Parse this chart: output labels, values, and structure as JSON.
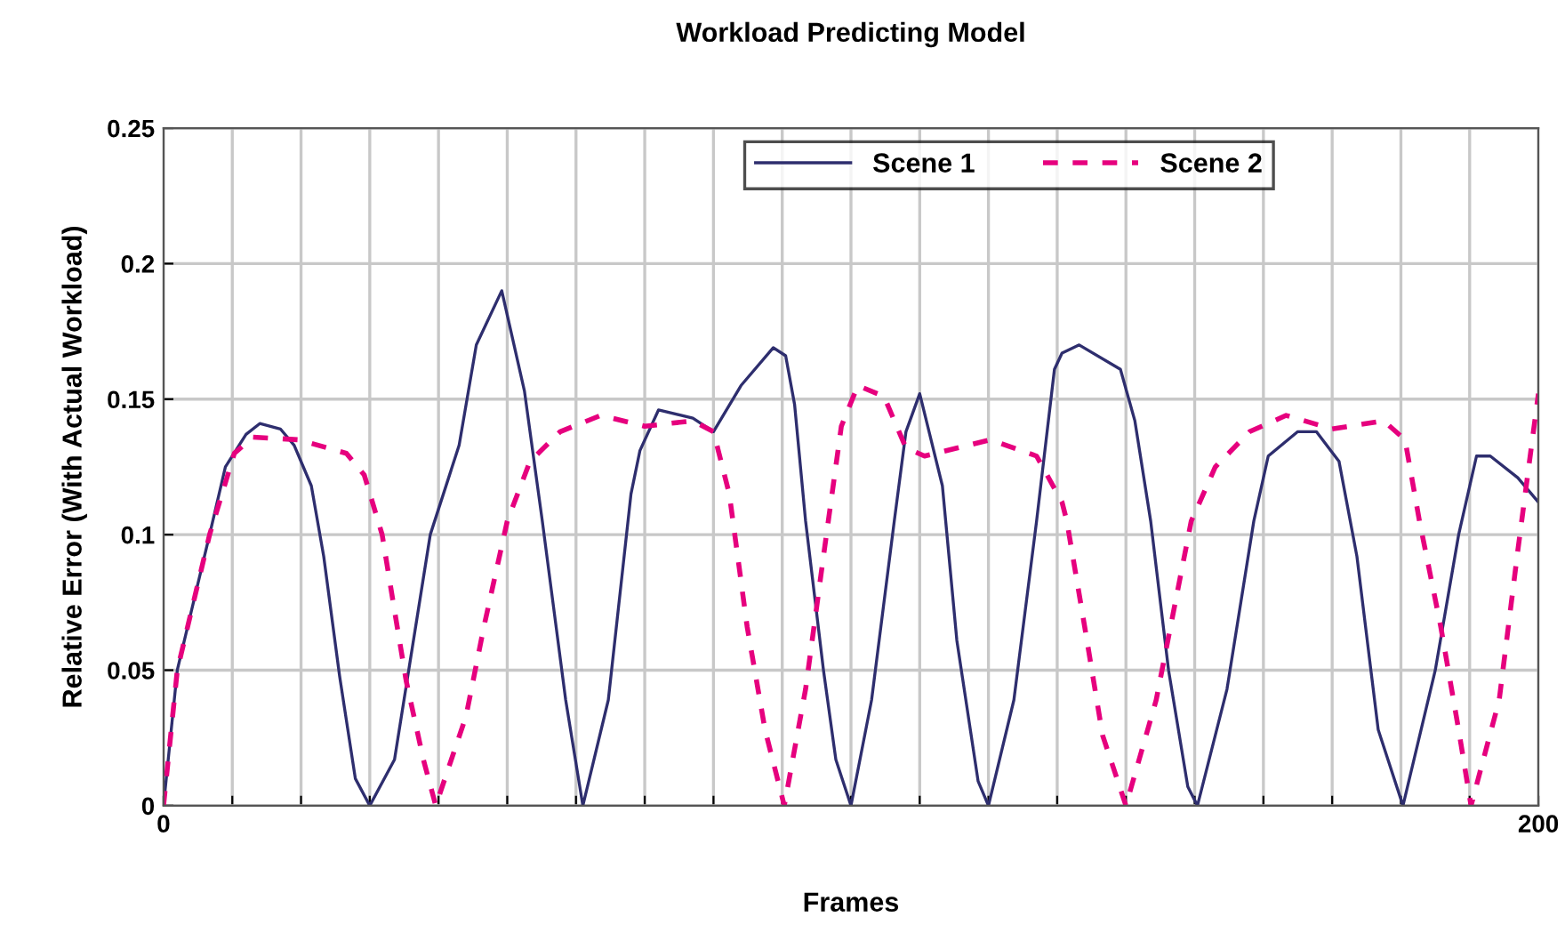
{
  "chart_data": {
    "type": "line",
    "title": "Workload Predicting Model",
    "xlabel": "Frames",
    "ylabel": "Relative Error (With Actual Workload)",
    "xlim": [
      0,
      200
    ],
    "xticks": [
      0,
      {
        "value": 10,
        "label": null
      },
      {
        "value": 20,
        "label": null
      },
      {
        "value": 30,
        "label": null
      },
      {
        "value": 40,
        "label": null
      },
      {
        "value": 50,
        "label": null
      },
      {
        "value": 60,
        "label": null
      },
      {
        "value": 70,
        "label": null
      },
      {
        "value": 80,
        "label": null
      },
      {
        "value": 90,
        "label": null
      },
      {
        "value": 100,
        "label": null
      },
      {
        "value": 110,
        "label": null
      },
      {
        "value": 120,
        "label": null
      },
      {
        "value": 130,
        "label": null
      },
      {
        "value": 140,
        "label": null
      },
      {
        "value": 150,
        "label": null
      },
      {
        "value": 160,
        "label": null
      },
      {
        "value": 170,
        "label": null
      },
      {
        "value": 180,
        "label": null
      },
      {
        "value": 190,
        "label": null
      },
      200
    ],
    "ylim": [
      0,
      0.25
    ],
    "yticks": [
      0,
      0.05,
      0.1,
      0.15,
      0.2,
      0.25
    ],
    "grid": true,
    "legend": "top",
    "marker": "none",
    "series": [
      {
        "name": "Scene 1",
        "color": "#2e2e6e",
        "line_style": "solid",
        "x": [
          0,
          2,
          6.7,
          9,
          12,
          14,
          17,
          19,
          21.5,
          23.3,
          25.6,
          27.9,
          30,
          33.6,
          38.8,
          43,
          45.5,
          49.2,
          52.5,
          55.1,
          58.5,
          61,
          64.7,
          68,
          69.3,
          72,
          77,
          80,
          84,
          88.7,
          90.5,
          91.8,
          93.4,
          96,
          97.8,
          100,
          103,
          106.3,
          108,
          110,
          113.3,
          115.4,
          118.5,
          120,
          123.7,
          127,
          129.6,
          130.7,
          133.2,
          139.2,
          141.3,
          143.6,
          146.2,
          149,
          150.4,
          154.7,
          158.6,
          160.7,
          165,
          167.7,
          171,
          173.6,
          176.7,
          180.3,
          185,
          188.4,
          191,
          193,
          197,
          200
        ],
        "values": [
          0,
          0.05,
          0.1,
          0.125,
          0.137,
          0.141,
          0.139,
          0.133,
          0.118,
          0.092,
          0.048,
          0.01,
          0,
          0.017,
          0.1,
          0.133,
          0.17,
          0.19,
          0.153,
          0.105,
          0.039,
          0,
          0.039,
          0.115,
          0.131,
          0.146,
          0.143,
          0.138,
          0.155,
          0.169,
          0.166,
          0.148,
          0.105,
          0.05,
          0.017,
          0,
          0.039,
          0.105,
          0.138,
          0.152,
          0.118,
          0.061,
          0.009,
          0,
          0.039,
          0.105,
          0.161,
          0.167,
          0.17,
          0.161,
          0.142,
          0.105,
          0.05,
          0.007,
          0,
          0.043,
          0.105,
          0.129,
          0.138,
          0.138,
          0.127,
          0.092,
          0.028,
          0,
          0.05,
          0.1,
          0.129,
          0.129,
          0.121,
          0.112
        ]
      },
      {
        "name": "Scene 2",
        "color": "#e6007e",
        "line_style": "dashed",
        "x": [
          0,
          2,
          6.7,
          10.3,
          13,
          19.7,
          26.6,
          29.2,
          31.8,
          33.6,
          35.3,
          37.8,
          39.6,
          44,
          46.6,
          50,
          53.3,
          57.7,
          63.6,
          70,
          77,
          80,
          82.3,
          84.9,
          87.5,
          90.3,
          93.4,
          96,
          98.6,
          101,
          104.8,
          108,
          110.7,
          120.3,
          127,
          130.7,
          131.4,
          134,
          136.6,
          140,
          144.4,
          149.5,
          153,
          158,
          163.3,
          170,
          177.5,
          180.6,
          182.7,
          185.8,
          188.4,
          190.2,
          194.3,
          197,
          198.7,
          200
        ],
        "values": [
          0,
          0.05,
          0.1,
          0.13,
          0.136,
          0.135,
          0.13,
          0.122,
          0.1,
          0.072,
          0.046,
          0.017,
          0,
          0.033,
          0.066,
          0.105,
          0.127,
          0.138,
          0.144,
          0.14,
          0.142,
          0.138,
          0.115,
          0.066,
          0.028,
          0,
          0.043,
          0.092,
          0.14,
          0.155,
          0.151,
          0.132,
          0.129,
          0.135,
          0.129,
          0.112,
          0.105,
          0.066,
          0.026,
          0,
          0.039,
          0.105,
          0.125,
          0.138,
          0.144,
          0.139,
          0.142,
          0.135,
          0.105,
          0.066,
          0.028,
          0,
          0.039,
          0.094,
          0.127,
          0.152
        ]
      }
    ]
  }
}
